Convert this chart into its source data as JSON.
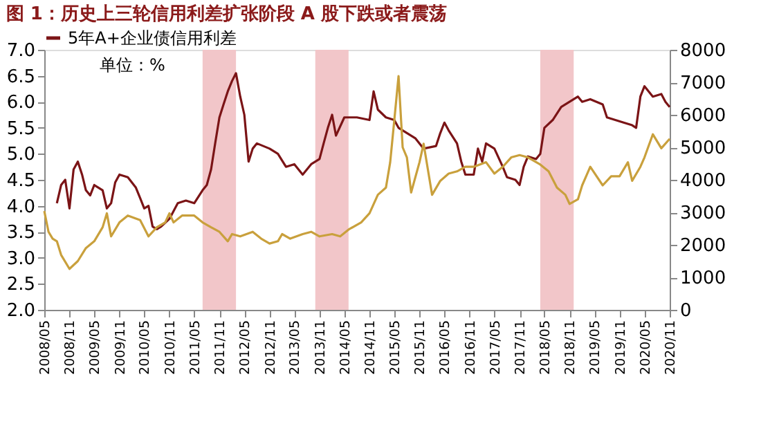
{
  "chart_data": {
    "type": "line",
    "title": "图 1：历史上三轮信用利差扩张阶段 A 股下跌或者震荡",
    "annotations": [
      "单位：%"
    ],
    "xlim": [
      "2008-05",
      "2020-11"
    ],
    "xticks": [
      {
        "value": "2008-05",
        "label": "2008/05"
      },
      {
        "value": "2008-11",
        "label": "2008/11"
      },
      {
        "value": "2009-05",
        "label": "2009/05"
      },
      {
        "value": "2009-11",
        "label": "2009/11"
      },
      {
        "value": "2010-05",
        "label": "2010/05"
      },
      {
        "value": "2010-11",
        "label": "2010/11"
      },
      {
        "value": "2011-05",
        "label": "2011/05"
      },
      {
        "value": "2011-11",
        "label": "2011/11"
      },
      {
        "value": "2012-05",
        "label": "2012/05"
      },
      {
        "value": "2012-11",
        "label": "2012/11"
      },
      {
        "value": "2013-05",
        "label": "2013/05"
      },
      {
        "value": "2013-11",
        "label": "2013/11"
      },
      {
        "value": "2014-05",
        "label": "2014/05"
      },
      {
        "value": "2014-11",
        "label": "2014/11"
      },
      {
        "value": "2015-05",
        "label": "2015/05"
      },
      {
        "value": "2015-11",
        "label": "2015/11"
      },
      {
        "value": "2016-05",
        "label": "2016/05"
      },
      {
        "value": "2016-11",
        "label": "2016/11"
      },
      {
        "value": "2017-05",
        "label": "2017/05"
      },
      {
        "value": "2017-11",
        "label": "2017/11"
      },
      {
        "value": "2018-05",
        "label": "2018/05"
      },
      {
        "value": "2018-11",
        "label": "2018/11"
      },
      {
        "value": "2019-05",
        "label": "2019/05"
      },
      {
        "value": "2019-11",
        "label": "2019/11"
      },
      {
        "value": "2020-05",
        "label": "2020/05"
      },
      {
        "value": "2020-11",
        "label": "2020/11"
      }
    ],
    "ylim": [
      2,
      7
    ],
    "yticks": [
      {
        "value": 2,
        "label": "2.0"
      },
      {
        "value": 2.5,
        "label": "2.5"
      },
      {
        "value": 3,
        "label": "3.0"
      },
      {
        "value": 3.5,
        "label": "3.5"
      },
      {
        "value": 4,
        "label": "4.0"
      },
      {
        "value": 4.5,
        "label": "4.5"
      },
      {
        "value": 5,
        "label": "5.0"
      },
      {
        "value": 5.5,
        "label": "5.5"
      },
      {
        "value": 6,
        "label": "6.0"
      },
      {
        "value": 6.5,
        "label": "6.5"
      },
      {
        "value": 7,
        "label": "7.0"
      }
    ],
    "y2lim": [
      0,
      8000
    ],
    "y2ticks": [
      0,
      1000,
      2000,
      3000,
      4000,
      5000,
      6000,
      7000,
      8000
    ],
    "grid": false,
    "legend": "top",
    "bands": [
      {
        "axis": "x",
        "from": "2011-07",
        "to": "2012-03",
        "color": "#f2c6c9"
      },
      {
        "axis": "x",
        "from": "2013-10",
        "to": "2014-06",
        "color": "#f2c6c9"
      },
      {
        "axis": "x",
        "from": "2018-04",
        "to": "2018-12",
        "color": "#f2c6c9"
      }
    ],
    "series": [
      {
        "name": "5年A+企业债信用利差",
        "color": "#7b1416",
        "x": [
          "2008-08",
          "2008-09",
          "2008-10",
          "2008-11",
          "2008-12",
          "2009-01",
          "2009-02",
          "2009-03",
          "2009-04",
          "2009-05",
          "2009-07",
          "2009-08",
          "2009-09",
          "2009-10",
          "2009-11",
          "2010-01",
          "2010-03",
          "2010-04",
          "2010-05",
          "2010-06",
          "2010-07",
          "2010-08",
          "2010-09",
          "2010-11",
          "2011-01",
          "2011-03",
          "2011-05",
          "2011-07",
          "2011-08",
          "2011-09",
          "2011-10",
          "2011-11",
          "2011-12",
          "2012-01",
          "2012-02",
          "2012-03",
          "2012-04",
          "2012-05",
          "2012-06",
          "2012-07",
          "2012-08",
          "2012-11",
          "2013-01",
          "2013-03",
          "2013-05",
          "2013-07",
          "2013-09",
          "2013-11",
          "2013-12",
          "2014-01",
          "2014-02",
          "2014-03",
          "2014-05",
          "2014-08",
          "2014-11",
          "2014-12",
          "2015-01",
          "2015-03",
          "2015-05",
          "2015-06",
          "2015-08",
          "2015-10",
          "2015-12",
          "2016-03",
          "2016-04",
          "2016-05",
          "2016-06",
          "2016-08",
          "2016-09",
          "2016-10",
          "2016-12",
          "2017-01",
          "2017-02",
          "2017-03",
          "2017-05",
          "2017-07",
          "2017-08",
          "2017-10",
          "2017-11",
          "2017-12",
          "2018-01",
          "2018-03",
          "2018-04",
          "2018-05",
          "2018-07",
          "2018-09",
          "2018-11",
          "2019-01",
          "2019-02",
          "2019-04",
          "2019-07",
          "2019-08",
          "2019-10",
          "2019-12",
          "2020-02",
          "2020-03",
          "2020-04",
          "2020-05",
          "2020-07",
          "2020-09",
          "2020-10",
          "2020-11"
        ],
        "values": [
          4.05,
          4.4,
          4.5,
          3.95,
          4.7,
          4.85,
          4.6,
          4.3,
          4.2,
          4.4,
          4.3,
          3.95,
          4.05,
          4.45,
          4.6,
          4.55,
          4.35,
          4.15,
          3.95,
          4.0,
          3.6,
          3.55,
          3.6,
          3.75,
          4.05,
          4.1,
          4.05,
          4.3,
          4.4,
          4.7,
          5.2,
          5.7,
          5.95,
          6.2,
          6.4,
          6.55,
          6.1,
          5.75,
          4.85,
          5.1,
          5.2,
          5.1,
          5.0,
          4.75,
          4.8,
          4.6,
          4.8,
          4.9,
          5.2,
          5.5,
          5.75,
          5.35,
          5.7,
          5.7,
          5.65,
          6.2,
          5.85,
          5.7,
          5.65,
          5.5,
          5.4,
          5.3,
          5.1,
          5.15,
          5.4,
          5.6,
          5.45,
          5.2,
          4.85,
          4.6,
          4.6,
          5.1,
          4.85,
          5.2,
          5.1,
          4.75,
          4.55,
          4.5,
          4.4,
          4.75,
          4.95,
          4.9,
          5.0,
          5.5,
          5.65,
          5.9,
          6.0,
          6.1,
          6.0,
          6.05,
          5.95,
          5.7,
          5.65,
          5.6,
          5.55,
          5.5,
          6.1,
          6.3,
          6.1,
          6.15,
          6.0,
          5.9
        ]
      },
      {
        "color": "#c9a03c",
        "axis": "y2",
        "x": [
          "2008-05",
          "2008-06",
          "2008-07",
          "2008-08",
          "2008-09",
          "2008-11",
          "2009-01",
          "2009-03",
          "2009-05",
          "2009-07",
          "2009-08",
          "2009-09",
          "2009-11",
          "2010-01",
          "2010-04",
          "2010-06",
          "2010-08",
          "2010-10",
          "2010-11",
          "2010-12",
          "2011-02",
          "2011-05",
          "2011-07",
          "2011-09",
          "2011-11",
          "2012-01",
          "2012-02",
          "2012-04",
          "2012-07",
          "2012-09",
          "2012-11",
          "2013-01",
          "2013-02",
          "2013-04",
          "2013-07",
          "2013-09",
          "2013-11",
          "2014-02",
          "2014-04",
          "2014-06",
          "2014-09",
          "2014-11",
          "2015-01",
          "2015-03",
          "2015-04",
          "2015-05",
          "2015-06",
          "2015-07",
          "2015-08",
          "2015-09",
          "2015-11",
          "2015-12",
          "2016-02",
          "2016-04",
          "2016-06",
          "2016-08",
          "2016-10",
          "2016-12",
          "2017-03",
          "2017-05",
          "2017-07",
          "2017-09",
          "2017-11",
          "2018-01",
          "2018-04",
          "2018-06",
          "2018-08",
          "2018-10",
          "2018-11",
          "2019-01",
          "2019-02",
          "2019-04",
          "2019-07",
          "2019-09",
          "2019-11",
          "2020-01",
          "2020-02",
          "2020-04",
          "2020-05",
          "2020-07",
          "2020-09",
          "2020-11"
        ],
        "values": [
          3040,
          2400,
          2190,
          2110,
          1690,
          1260,
          1500,
          1900,
          2110,
          2540,
          2970,
          2260,
          2690,
          2900,
          2760,
          2260,
          2540,
          2690,
          2970,
          2690,
          2900,
          2900,
          2690,
          2540,
          2400,
          2110,
          2330,
          2260,
          2400,
          2190,
          2040,
          2110,
          2330,
          2190,
          2330,
          2400,
          2260,
          2330,
          2260,
          2470,
          2690,
          2970,
          3540,
          3760,
          4540,
          5830,
          7190,
          5000,
          4690,
          3610,
          4540,
          5110,
          3540,
          3970,
          4190,
          4260,
          4400,
          4400,
          4540,
          4190,
          4400,
          4690,
          4760,
          4690,
          4470,
          4260,
          3760,
          3540,
          3260,
          3400,
          3830,
          4400,
          3830,
          4110,
          4110,
          4540,
          3970,
          4400,
          4690,
          5400,
          4970,
          5260
        ]
      }
    ]
  }
}
